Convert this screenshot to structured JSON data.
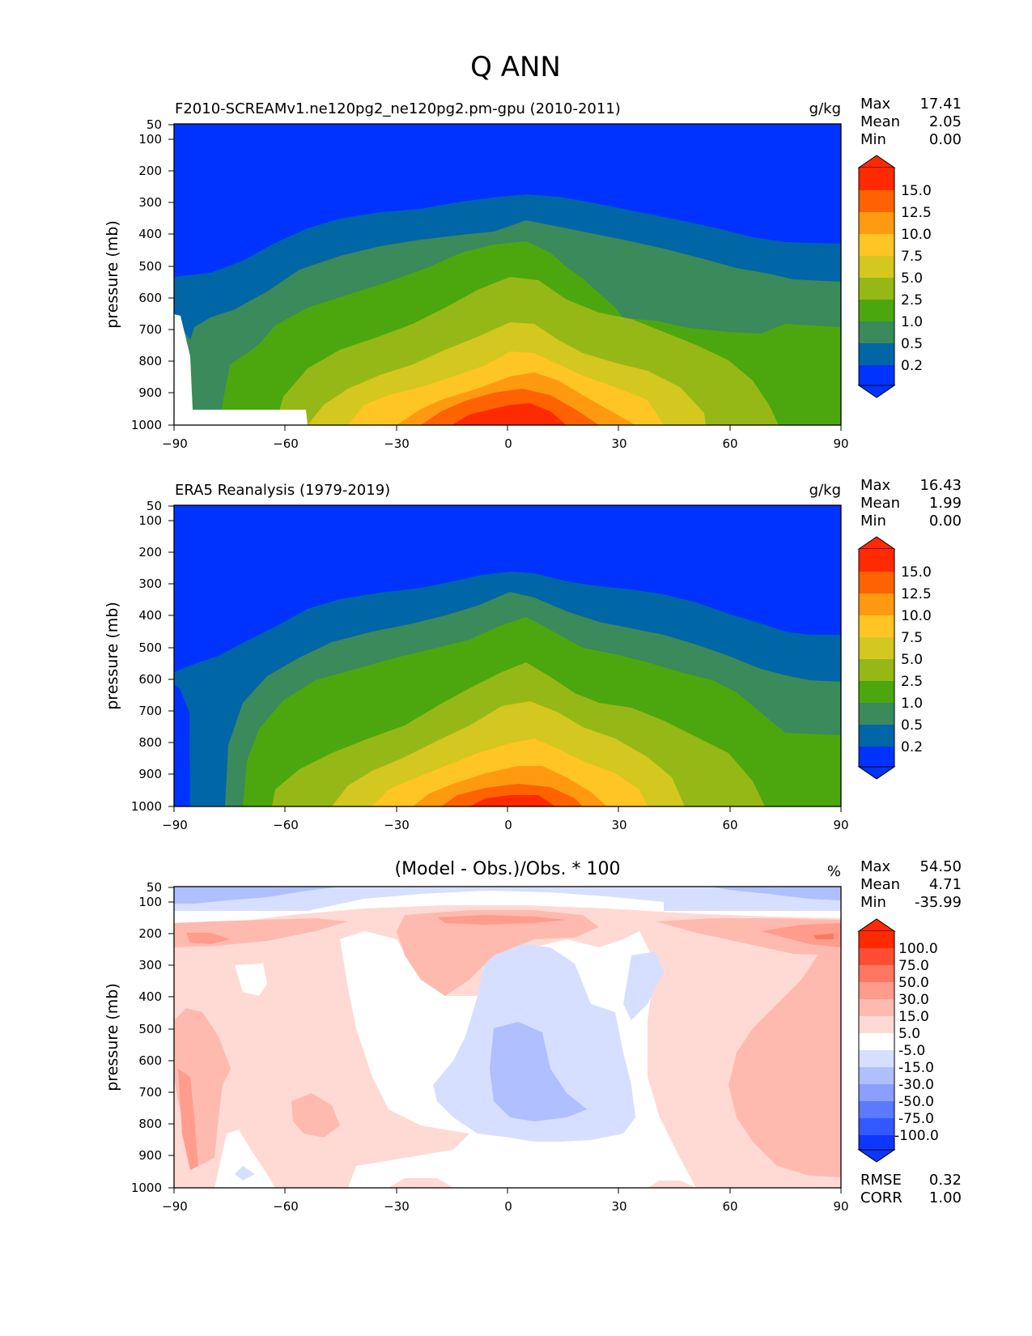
{
  "figure": {
    "title": "Q ANN"
  },
  "chart_data": [
    {
      "type": "contour",
      "title": "F2010-SCREAMv1.ne120pg2_ne120pg2.pm-gpu (2010-2011)",
      "units": "g/kg",
      "xlabel": "",
      "ylabel": "pressure (mb)",
      "xlim": [
        -90,
        90
      ],
      "ylim": [
        1000,
        50
      ],
      "xticks": [
        "−90",
        "−60",
        "−30",
        "0",
        "30",
        "60",
        "90"
      ],
      "yticks": [
        "50",
        "100",
        "200",
        "300",
        "400",
        "500",
        "600",
        "700",
        "800",
        "900",
        "1000"
      ],
      "stats": [
        {
          "label": "Max",
          "value": "17.41"
        },
        {
          "label": "Mean",
          "value": "2.05"
        },
        {
          "label": "Min",
          "value": "0.00"
        }
      ],
      "levels": [
        "15.0",
        "12.5",
        "10.0",
        "7.5",
        "5.0",
        "2.5",
        "1.0",
        "0.5",
        "0.2"
      ],
      "colors": [
        "#ff2a00",
        "#ff6200",
        "#ff9a10",
        "#ffc524",
        "#d4c71f",
        "#96b816",
        "#4ca70e",
        "#3a8a5c",
        "#0066a5",
        "#0033ff"
      ]
    },
    {
      "type": "contour",
      "title": "ERA5 Reanalysis (1979-2019)",
      "units": "g/kg",
      "xlabel": "",
      "ylabel": "pressure (mb)",
      "xlim": [
        -90,
        90
      ],
      "ylim": [
        1000,
        50
      ],
      "xticks": [
        "−90",
        "−60",
        "−30",
        "0",
        "30",
        "60",
        "90"
      ],
      "yticks": [
        "50",
        "100",
        "200",
        "300",
        "400",
        "500",
        "600",
        "700",
        "800",
        "900",
        "1000"
      ],
      "stats": [
        {
          "label": "Max",
          "value": "16.43"
        },
        {
          "label": "Mean",
          "value": "1.99"
        },
        {
          "label": "Min",
          "value": "0.00"
        }
      ],
      "levels": [
        "15.0",
        "12.5",
        "10.0",
        "7.5",
        "5.0",
        "2.5",
        "1.0",
        "0.5",
        "0.2"
      ],
      "colors": [
        "#ff2a00",
        "#ff6200",
        "#ff9a10",
        "#ffc524",
        "#d4c71f",
        "#96b816",
        "#4ca70e",
        "#3a8a5c",
        "#0066a5",
        "#0033ff"
      ]
    },
    {
      "type": "contour",
      "title": "(Model - Obs.)/Obs. * 100",
      "units": "%",
      "xlabel": "",
      "ylabel": "pressure (mb)",
      "xlim": [
        -90,
        90
      ],
      "ylim": [
        1000,
        50
      ],
      "xticks": [
        "−90",
        "−60",
        "−30",
        "0",
        "30",
        "60",
        "90"
      ],
      "yticks": [
        "50",
        "100",
        "200",
        "300",
        "400",
        "500",
        "600",
        "700",
        "800",
        "900",
        "1000"
      ],
      "stats": [
        {
          "label": "Max",
          "value": "54.50"
        },
        {
          "label": "Mean",
          "value": "4.71"
        },
        {
          "label": "Min",
          "value": "-35.99"
        }
      ],
      "levels": [
        "100.0",
        "75.0",
        "50.0",
        "30.0",
        "15.0",
        "5.0",
        "-5.0",
        "-15.0",
        "-30.0",
        "-50.0",
        "-75.0",
        "-100.0"
      ],
      "colors": [
        "#ff2a00",
        "#ff4d33",
        "#ff7760",
        "#ff9c8c",
        "#ffbab0",
        "#ffdad4",
        "#ffffff",
        "#d6dfff",
        "#afbfff",
        "#8a9fff",
        "#5a7aff",
        "#3358ff",
        "#0d36ff"
      ],
      "footer_stats": [
        {
          "label": "RMSE",
          "value": "0.32"
        },
        {
          "label": "CORR",
          "value": "1.00"
        }
      ]
    }
  ]
}
